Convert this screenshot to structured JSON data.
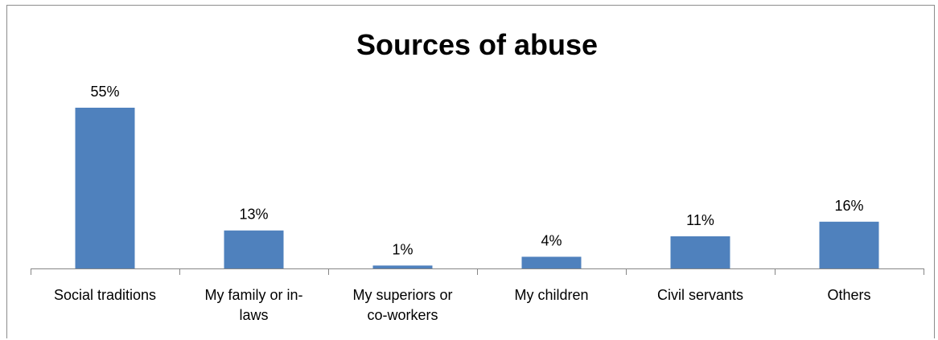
{
  "chart_data": {
    "type": "bar",
    "title": "Sources of abuse",
    "categories": [
      [
        "Social traditions"
      ],
      [
        "My family or in-",
        "laws"
      ],
      [
        "My superiors or",
        "co-workers"
      ],
      [
        "My children"
      ],
      [
        "Civil servants"
      ],
      [
        "Others"
      ]
    ],
    "values": [
      55,
      13,
      1,
      4,
      11,
      16
    ],
    "value_labels": [
      "55%",
      "13%",
      "1%",
      "4%",
      "11%",
      "16%"
    ],
    "unit": "%",
    "xlabel": "",
    "ylabel": "",
    "ylim": [
      0,
      55
    ],
    "grid": false,
    "legend": "none",
    "colors": {
      "bar": "#4f81bd",
      "axis": "#868686",
      "frame": "#8c8c8c"
    }
  }
}
